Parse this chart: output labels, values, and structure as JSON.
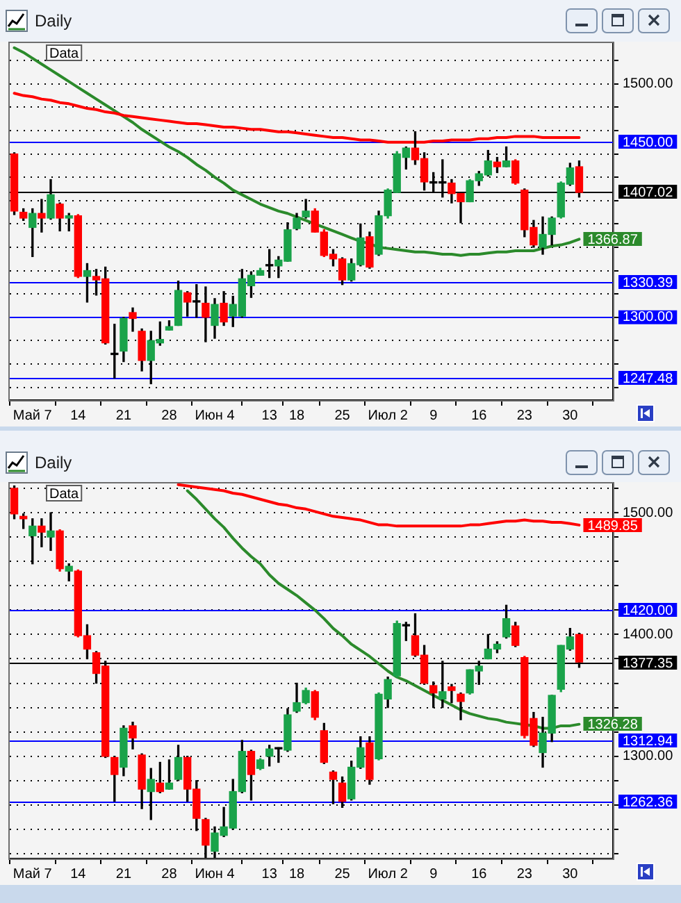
{
  "chart_data": [
    {
      "type": "candlestick",
      "title": "Daily",
      "annotations": [
        "Data"
      ],
      "categories": [
        null,
        null,
        "Май 7",
        null,
        null,
        null,
        null,
        "14",
        null,
        null,
        null,
        null,
        "21",
        null,
        null,
        null,
        null,
        "28",
        null,
        null,
        null,
        null,
        "Июн 4",
        null,
        null,
        null,
        null,
        null,
        "13",
        null,
        null,
        "18",
        null,
        null,
        null,
        null,
        "25",
        null,
        null,
        null,
        null,
        "Июл 2",
        null,
        null,
        null,
        null,
        "9",
        null,
        null,
        null,
        null,
        "16",
        null,
        null,
        null,
        null,
        "23",
        null,
        null,
        null,
        null,
        "30",
        null
      ],
      "ohlc": [
        [
          1440,
          1441,
          1388,
          1391
        ],
        [
          1390,
          1393,
          1383,
          1385
        ],
        [
          1377,
          1393,
          1352,
          1389
        ],
        [
          1389,
          1401,
          1373,
          1385
        ],
        [
          1385,
          1418,
          1384,
          1405
        ],
        [
          1397,
          1398,
          1374,
          1385
        ],
        [
          1385,
          1389,
          1374,
          1387
        ],
        [
          1387,
          1388,
          1334,
          1335
        ],
        [
          1335,
          1346,
          1313,
          1340
        ],
        [
          1335,
          1341,
          1319,
          1332
        ],
        [
          1333,
          1343,
          1277,
          1278
        ],
        [
          1268,
          1294,
          1248,
          1268
        ],
        [
          1271,
          1300,
          1262,
          1299
        ],
        [
          1304,
          1308,
          1288,
          1299
        ],
        [
          1288,
          1290,
          1254,
          1263
        ],
        [
          1263,
          1288,
          1243,
          1280
        ],
        [
          1278,
          1296,
          1276,
          1281
        ],
        [
          1289,
          1297,
          1289,
          1292
        ],
        [
          1293,
          1331,
          1293,
          1323
        ],
        [
          1321,
          1322,
          1301,
          1313
        ],
        [
          1313,
          1328,
          1300,
          1313
        ],
        [
          1312,
          1326,
          1279,
          1300
        ],
        [
          1293,
          1316,
          1282,
          1311
        ],
        [
          1312,
          1322,
          1293,
          1296
        ],
        [
          1301,
          1318,
          1292,
          1311
        ],
        [
          1301,
          1341,
          1300,
          1333
        ],
        [
          1327,
          1339,
          1317,
          1336
        ],
        [
          1336,
          1342,
          1336,
          1340
        ],
        [
          1344,
          1358,
          1334,
          1344
        ],
        [
          1344,
          1352,
          1334,
          1349
        ],
        [
          1348,
          1381,
          1348,
          1375
        ],
        [
          1376,
          1389,
          1375,
          1385
        ],
        [
          1386,
          1401,
          1385,
          1391
        ],
        [
          1391,
          1393,
          1373,
          1373
        ],
        [
          1373,
          1375,
          1352,
          1353
        ],
        [
          1354,
          1358,
          1344,
          1350
        ],
        [
          1350,
          1351,
          1328,
          1332
        ],
        [
          1332,
          1350,
          1331,
          1346
        ],
        [
          1345,
          1380,
          1344,
          1368
        ],
        [
          1369,
          1373,
          1342,
          1343
        ],
        [
          1354,
          1391,
          1353,
          1387
        ],
        [
          1387,
          1410,
          1385,
          1409
        ],
        [
          1407,
          1442,
          1407,
          1440
        ],
        [
          1437,
          1446,
          1427,
          1445
        ],
        [
          1445,
          1459,
          1431,
          1435
        ],
        [
          1436,
          1441,
          1409,
          1416
        ],
        [
          1415,
          1424,
          1407,
          1415
        ],
        [
          1415,
          1435,
          1403,
          1415
        ],
        [
          1415,
          1418,
          1398,
          1406
        ],
        [
          1406,
          1407,
          1381,
          1399
        ],
        [
          1399,
          1418,
          1399,
          1417
        ],
        [
          1417,
          1425,
          1413,
          1423
        ],
        [
          1422,
          1443,
          1421,
          1434
        ],
        [
          1433,
          1437,
          1424,
          1429
        ],
        [
          1429,
          1446,
          1429,
          1434
        ],
        [
          1434,
          1435,
          1414,
          1415
        ],
        [
          1409,
          1410,
          1369,
          1375
        ],
        [
          1377,
          1383,
          1360,
          1362
        ],
        [
          1360,
          1386,
          1354,
          1371
        ],
        [
          1371,
          1386,
          1362,
          1385
        ],
        [
          1386,
          1416,
          1385,
          1415
        ],
        [
          1414,
          1432,
          1413,
          1428
        ],
        [
          1429,
          1434,
          1403,
          1407.02
        ]
      ],
      "colors": [
        "#ff0000",
        "#ff0000",
        "#1aa34a",
        "#ff0000",
        "#1aa34a",
        "#ff0000",
        "#1aa34a",
        "#ff0000",
        "#1aa34a",
        "#ff0000",
        "#ff0000",
        "#000000",
        "#1aa34a",
        "#ff0000",
        "#ff0000",
        "#1aa34a",
        "#1aa34a",
        "#1aa34a",
        "#1aa34a",
        "#ff0000",
        "#000000",
        "#ff0000",
        "#1aa34a",
        "#ff0000",
        "#1aa34a",
        "#1aa34a",
        "#1aa34a",
        "#1aa34a",
        "#000000",
        "#1aa34a",
        "#1aa34a",
        "#1aa34a",
        "#1aa34a",
        "#ff0000",
        "#ff0000",
        "#ff0000",
        "#ff0000",
        "#1aa34a",
        "#1aa34a",
        "#ff0000",
        "#1aa34a",
        "#1aa34a",
        "#1aa34a",
        "#1aa34a",
        "#ff0000",
        "#ff0000",
        "#000000",
        "#000000",
        "#ff0000",
        "#ff0000",
        "#1aa34a",
        "#1aa34a",
        "#1aa34a",
        "#ff0000",
        "#1aa34a",
        "#ff0000",
        "#ff0000",
        "#ff0000",
        "#1aa34a",
        "#1aa34a",
        "#1aa34a",
        "#1aa34a",
        "#ff0000"
      ],
      "series": [
        {
          "type": "line",
          "color": "#ff0000",
          "values": [
            1492,
            1490,
            1489,
            1487,
            1486,
            1484,
            1483,
            1481,
            1479,
            1478,
            1476,
            1475,
            1473,
            1472,
            1471,
            1470,
            1469,
            1468,
            1467,
            1466,
            1466,
            1465,
            1464,
            1463,
            1463,
            1462,
            1461,
            1461,
            1460,
            1459,
            1459,
            1458,
            1457,
            1456,
            1455,
            1454,
            1454,
            1453,
            1452,
            1452,
            1451,
            1450,
            1450,
            1450,
            1450,
            1450,
            1451,
            1451,
            1452,
            1452,
            1452,
            1453,
            1453,
            1454,
            1454,
            1455,
            1455,
            1455,
            1454,
            1454,
            1454,
            1454,
            1454
          ]
        },
        {
          "type": "line",
          "color": "#2b8a2b",
          "values": [
            1531,
            1527,
            1522,
            1517,
            1512,
            1507,
            1502,
            1497,
            1492,
            1487,
            1482,
            1477,
            1472,
            1467,
            1461,
            1456,
            1451,
            1446,
            1442,
            1437,
            1431,
            1426,
            1420,
            1415,
            1409,
            1405,
            1401,
            1397,
            1394,
            1391,
            1389,
            1386,
            1383,
            1380,
            1377,
            1374,
            1371,
            1368,
            1365,
            1363,
            1360,
            1359,
            1358,
            1357,
            1356,
            1356,
            1355,
            1354,
            1354,
            1353,
            1354,
            1354,
            1355,
            1356,
            1356,
            1357,
            1357,
            1357,
            1359,
            1361,
            1362,
            1364,
            1366.87
          ],
          "value_labels": [
            null,
            null,
            null,
            null,
            null,
            null,
            null,
            null,
            null,
            null,
            null,
            null,
            null,
            null,
            null,
            null,
            null,
            null,
            null,
            null,
            null,
            null,
            null,
            null,
            null,
            null,
            null,
            null,
            null,
            null,
            null,
            null,
            null,
            null,
            null,
            null,
            null,
            null,
            null,
            null,
            null,
            null,
            null,
            null,
            null,
            null,
            null,
            null,
            null,
            null,
            null,
            null,
            null,
            null,
            null,
            null,
            null,
            null,
            null,
            null,
            null,
            null,
            "1366.87"
          ]
        }
      ],
      "ylim": [
        1229,
        1535
      ],
      "yticks": [
        {
          "value": 1240,
          "label": null
        },
        {
          "value": 1260,
          "label": null
        },
        {
          "value": 1280,
          "label": null
        },
        {
          "value": 1300,
          "label": "1300.00"
        },
        {
          "value": 1320,
          "label": null
        },
        {
          "value": 1340,
          "label": null
        },
        {
          "value": 1360,
          "label": null
        },
        {
          "value": 1380,
          "label": null
        },
        {
          "value": 1400,
          "label": null
        },
        {
          "value": 1420,
          "label": null
        },
        {
          "value": 1440,
          "label": null
        },
        {
          "value": 1460,
          "label": null
        },
        {
          "value": 1480,
          "label": null
        },
        {
          "value": 1500,
          "label": "1500.00"
        },
        {
          "value": 1520,
          "label": null
        }
      ],
      "ref_lines": [
        {
          "axis": "y",
          "value": 1450,
          "label": "1450.00",
          "color": "#0000ff"
        },
        {
          "axis": "y",
          "value": 1407.02,
          "label": "1407.02",
          "color": "#000000"
        },
        {
          "axis": "y",
          "value": 1330.39,
          "label": "1330.39",
          "color": "#0000ff"
        },
        {
          "axis": "y",
          "value": 1300,
          "color": "#0000ff"
        },
        {
          "axis": "y",
          "value": 1247.48,
          "label": "1247.48",
          "color": "#0000ff"
        }
      ],
      "grid": "y",
      "marker": "none"
    },
    {
      "type": "candlestick",
      "title": "Daily",
      "annotations": [
        "Data"
      ],
      "categories": [
        null,
        null,
        "Май 7",
        null,
        null,
        null,
        null,
        "14",
        null,
        null,
        null,
        null,
        "21",
        null,
        null,
        null,
        null,
        "28",
        null,
        null,
        null,
        null,
        "Июн 4",
        null,
        null,
        null,
        null,
        null,
        "13",
        null,
        null,
        "18",
        null,
        null,
        null,
        null,
        "25",
        null,
        null,
        null,
        null,
        "Июл 2",
        null,
        null,
        null,
        null,
        "9",
        null,
        null,
        null,
        null,
        "16",
        null,
        null,
        null,
        null,
        "23",
        null,
        null,
        null,
        null,
        "30",
        null
      ],
      "ohlc": [
        [
          1520,
          1522,
          1495,
          1499
        ],
        [
          1497,
          1499,
          1487,
          1495
        ],
        [
          1481,
          1495,
          1458,
          1489
        ],
        [
          1489,
          1495,
          1472,
          1484
        ],
        [
          1480,
          1500,
          1469,
          1485
        ],
        [
          1485,
          1486,
          1452,
          1454
        ],
        [
          1452,
          1458,
          1444,
          1456
        ],
        [
          1452,
          1453,
          1398,
          1399
        ],
        [
          1399,
          1408,
          1380,
          1388
        ],
        [
          1385,
          1386,
          1360,
          1368
        ],
        [
          1374,
          1378,
          1299,
          1300
        ],
        [
          1299,
          1300,
          1263,
          1285
        ],
        [
          1291,
          1325,
          1284,
          1323
        ],
        [
          1325,
          1328,
          1306,
          1315
        ],
        [
          1301,
          1302,
          1257,
          1273
        ],
        [
          1271,
          1290,
          1248,
          1281
        ],
        [
          1278,
          1295,
          1270,
          1271
        ],
        [
          1273,
          1297,
          1273,
          1278
        ],
        [
          1281,
          1309,
          1280,
          1299
        ],
        [
          1299,
          1300,
          1263,
          1273
        ],
        [
          1273,
          1280,
          1239,
          1249
        ],
        [
          1248,
          1249,
          1217,
          1227
        ],
        [
          1222,
          1242,
          1217,
          1237
        ],
        [
          1235,
          1258,
          1234,
          1242
        ],
        [
          1241,
          1281,
          1240,
          1271
        ],
        [
          1271,
          1313,
          1270,
          1304
        ],
        [
          1304,
          1305,
          1264,
          1285
        ],
        [
          1290,
          1298,
          1289,
          1297
        ],
        [
          1300,
          1309,
          1292,
          1306
        ],
        [
          1306,
          1307,
          1295,
          1306
        ],
        [
          1305,
          1339,
          1304,
          1334
        ],
        [
          1337,
          1360,
          1336,
          1344
        ],
        [
          1344,
          1356,
          1343,
          1354
        ],
        [
          1353,
          1354,
          1330,
          1332
        ],
        [
          1321,
          1327,
          1294,
          1295
        ],
        [
          1287,
          1288,
          1261,
          1281
        ],
        [
          1278,
          1283,
          1258,
          1263
        ],
        [
          1265,
          1296,
          1264,
          1291
        ],
        [
          1291,
          1316,
          1290,
          1307
        ],
        [
          1311,
          1316,
          1277,
          1281
        ],
        [
          1298,
          1352,
          1297,
          1351
        ],
        [
          1347,
          1365,
          1340,
          1363
        ],
        [
          1366,
          1411,
          1365,
          1409
        ],
        [
          1407,
          1410,
          1395,
          1407
        ],
        [
          1399,
          1417,
          1382,
          1383
        ],
        [
          1383,
          1391,
          1359,
          1360
        ],
        [
          1358,
          1361,
          1340,
          1352
        ],
        [
          1347,
          1378,
          1340,
          1353
        ],
        [
          1357,
          1359,
          1344,
          1354
        ],
        [
          1351,
          1352,
          1330,
          1345
        ],
        [
          1352,
          1371,
          1351,
          1371
        ],
        [
          1370,
          1378,
          1359,
          1374
        ],
        [
          1380,
          1400,
          1380,
          1388
        ],
        [
          1388,
          1394,
          1385,
          1392
        ],
        [
          1398,
          1424,
          1397,
          1413
        ],
        [
          1407,
          1410,
          1390,
          1391
        ],
        [
          1381,
          1382,
          1315,
          1317
        ],
        [
          1331,
          1336,
          1308,
          1309
        ],
        [
          1303,
          1332,
          1291,
          1319
        ],
        [
          1319,
          1350,
          1312,
          1350
        ],
        [
          1355,
          1391,
          1353,
          1391
        ],
        [
          1388,
          1405,
          1387,
          1398
        ],
        [
          1400,
          1401,
          1373,
          1377.35
        ]
      ],
      "colors": [
        "#ff0000",
        "#ff0000",
        "#1aa34a",
        "#ff0000",
        "#1aa34a",
        "#ff0000",
        "#1aa34a",
        "#ff0000",
        "#ff0000",
        "#ff0000",
        "#ff0000",
        "#ff0000",
        "#1aa34a",
        "#ff0000",
        "#ff0000",
        "#1aa34a",
        "#ff0000",
        "#1aa34a",
        "#1aa34a",
        "#ff0000",
        "#ff0000",
        "#ff0000",
        "#1aa34a",
        "#1aa34a",
        "#1aa34a",
        "#1aa34a",
        "#ff0000",
        "#1aa34a",
        "#1aa34a",
        "#000000",
        "#1aa34a",
        "#1aa34a",
        "#1aa34a",
        "#ff0000",
        "#ff0000",
        "#ff0000",
        "#ff0000",
        "#1aa34a",
        "#1aa34a",
        "#ff0000",
        "#1aa34a",
        "#1aa34a",
        "#1aa34a",
        "#000000",
        "#ff0000",
        "#ff0000",
        "#ff0000",
        "#1aa34a",
        "#ff0000",
        "#ff0000",
        "#1aa34a",
        "#1aa34a",
        "#1aa34a",
        "#1aa34a",
        "#1aa34a",
        "#ff0000",
        "#ff0000",
        "#ff0000",
        "#1aa34a",
        "#1aa34a",
        "#1aa34a",
        "#1aa34a",
        "#ff0000"
      ],
      "series": [
        {
          "type": "line",
          "color": "#ff0000",
          "values": [
            null,
            null,
            null,
            null,
            null,
            null,
            null,
            null,
            null,
            null,
            null,
            null,
            null,
            null,
            null,
            null,
            null,
            null,
            1523,
            1522,
            1521,
            1520,
            1519,
            1518,
            1516,
            1515,
            1513,
            1511,
            1509,
            1507,
            1506,
            1504,
            1503,
            1501,
            1499,
            1497,
            1496,
            1495,
            1494,
            1492,
            1490,
            1490,
            1489,
            1489,
            1489,
            1489,
            1489,
            1489,
            1489,
            1489,
            1490,
            1490,
            1491,
            1492,
            1493,
            1493,
            1494,
            1493,
            1493,
            1492,
            1492,
            1491,
            1489.85
          ],
          "value_labels": [
            null,
            null,
            null,
            null,
            null,
            null,
            null,
            null,
            null,
            null,
            null,
            null,
            null,
            null,
            null,
            null,
            null,
            null,
            null,
            null,
            null,
            null,
            null,
            null,
            null,
            null,
            null,
            null,
            null,
            null,
            null,
            null,
            null,
            null,
            null,
            null,
            null,
            null,
            null,
            null,
            null,
            null,
            null,
            null,
            null,
            null,
            null,
            null,
            null,
            null,
            null,
            null,
            null,
            null,
            null,
            null,
            null,
            null,
            null,
            null,
            null,
            null,
            "1489.85"
          ]
        },
        {
          "type": "line",
          "color": "#2b8a2b",
          "values": [
            null,
            null,
            null,
            null,
            null,
            null,
            null,
            null,
            null,
            null,
            null,
            null,
            null,
            null,
            null,
            null,
            null,
            null,
            null,
            1518,
            1511,
            1503,
            1495,
            1488,
            1479,
            1471,
            1464,
            1458,
            1449,
            1442,
            1437,
            1432,
            1426,
            1420,
            1413,
            1405,
            1399,
            1392,
            1387,
            1382,
            1376,
            1370,
            1365,
            1362,
            1358,
            1354,
            1350,
            1346,
            1342,
            1338,
            1335,
            1333,
            1331,
            1330,
            1328,
            1327,
            1326,
            1325,
            1323,
            1323,
            1325,
            1325,
            1326.28
          ],
          "value_labels": [
            null,
            null,
            null,
            null,
            null,
            null,
            null,
            null,
            null,
            null,
            null,
            null,
            null,
            null,
            null,
            null,
            null,
            null,
            null,
            null,
            null,
            null,
            null,
            null,
            null,
            null,
            null,
            null,
            null,
            null,
            null,
            null,
            null,
            null,
            null,
            null,
            null,
            null,
            null,
            null,
            null,
            null,
            null,
            null,
            null,
            null,
            null,
            null,
            null,
            null,
            null,
            null,
            null,
            null,
            null,
            null,
            null,
            null,
            null,
            null,
            null,
            null,
            "1326.28"
          ]
        }
      ],
      "ylim": [
        1216,
        1524
      ],
      "yticks": [
        {
          "value": 1220,
          "label": null
        },
        {
          "value": 1240,
          "label": null
        },
        {
          "value": 1260,
          "label": null
        },
        {
          "value": 1280,
          "label": null
        },
        {
          "value": 1300,
          "label": "1300.00"
        },
        {
          "value": 1320,
          "label": null
        },
        {
          "value": 1340,
          "label": null
        },
        {
          "value": 1360,
          "label": null
        },
        {
          "value": 1380,
          "label": null
        },
        {
          "value": 1400,
          "label": "1400.00"
        },
        {
          "value": 1420,
          "label": null
        },
        {
          "value": 1440,
          "label": null
        },
        {
          "value": 1460,
          "label": null
        },
        {
          "value": 1480,
          "label": null
        },
        {
          "value": 1500,
          "label": "1500.00"
        },
        {
          "value": 1520,
          "label": null
        }
      ],
      "ref_lines": [
        {
          "axis": "y",
          "value": 1420,
          "label": "1420.00",
          "color": "#0000ff"
        },
        {
          "axis": "y",
          "value": 1377.35,
          "label": "1377.35",
          "color": "#000000"
        },
        {
          "axis": "y",
          "value": 1312.94,
          "label": "1312.94",
          "color": "#0000ff"
        },
        {
          "axis": "y",
          "value": 1262.36,
          "label": "1262.36",
          "color": "#0000ff"
        }
      ],
      "grid": "y",
      "marker": "none"
    }
  ]
}
